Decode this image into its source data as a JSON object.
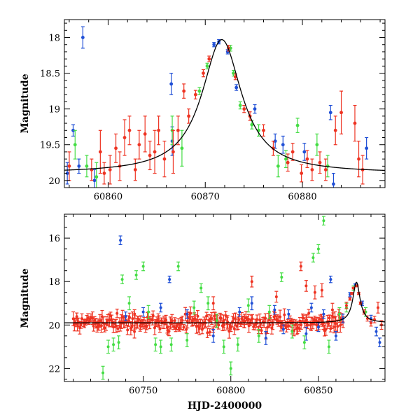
{
  "colors": {
    "blue": "#1f4fd6",
    "green": "#44dd44",
    "red": "#ee3322",
    "model": "#000000"
  },
  "chart_data": [
    {
      "type": "scatter",
      "panel": "top",
      "xlabel": "",
      "ylabel": "Magnitude",
      "xlim": [
        60855.5,
        60888.5
      ],
      "ylim": [
        20.1,
        17.75
      ],
      "y_inverted": true,
      "x_ticks": [
        60860,
        60870,
        60880
      ],
      "y_ticks": [
        18,
        18.5,
        19,
        19.5,
        20
      ],
      "y_tick_labels": [
        "18",
        "18.5",
        "19",
        "19.5",
        "20"
      ],
      "model_curve": {
        "type": "lorentzian",
        "peak_x": 60871.7,
        "peak_mag": 18.03,
        "baseline_mag": 19.9,
        "width": 2.5
      },
      "series": [
        {
          "color": "blue",
          "points": [
            {
              "x": 60855.8,
              "y": 19.9,
              "err": 0.15
            },
            {
              "x": 60856.4,
              "y": 19.3,
              "err": 0.08
            },
            {
              "x": 60857.0,
              "y": 19.8,
              "err": 0.1
            },
            {
              "x": 60857.4,
              "y": 18.0,
              "err": 0.15
            },
            {
              "x": 60858.6,
              "y": 20.0,
              "err": 0.15
            },
            {
              "x": 60866.5,
              "y": 18.65,
              "err": 0.15
            },
            {
              "x": 60866.6,
              "y": 19.45,
              "err": 0.2
            },
            {
              "x": 60870.9,
              "y": 18.1,
              "err": 0.03
            },
            {
              "x": 60871.4,
              "y": 18.06,
              "err": 0.03
            },
            {
              "x": 60872.3,
              "y": 18.2,
              "err": 0.03
            },
            {
              "x": 60873.2,
              "y": 18.7,
              "err": 0.04
            },
            {
              "x": 60875.1,
              "y": 19.0,
              "err": 0.06
            },
            {
              "x": 60877.2,
              "y": 19.45,
              "err": 0.1
            },
            {
              "x": 60878.0,
              "y": 19.5,
              "err": 0.12
            },
            {
              "x": 60880.2,
              "y": 19.6,
              "err": 0.12
            },
            {
              "x": 60882.9,
              "y": 19.05,
              "err": 0.1
            },
            {
              "x": 60883.2,
              "y": 20.05,
              "err": 0.15
            },
            {
              "x": 60886.6,
              "y": 19.55,
              "err": 0.15
            }
          ]
        },
        {
          "color": "green",
          "points": [
            {
              "x": 60856.6,
              "y": 19.5,
              "err": 0.2
            },
            {
              "x": 60857.8,
              "y": 19.8,
              "err": 0.15
            },
            {
              "x": 60858.8,
              "y": 19.95,
              "err": 0.2
            },
            {
              "x": 60866.6,
              "y": 19.3,
              "err": 0.2
            },
            {
              "x": 60867.6,
              "y": 19.55,
              "err": 0.25
            },
            {
              "x": 60869.4,
              "y": 18.75,
              "err": 0.05
            },
            {
              "x": 60870.2,
              "y": 18.4,
              "err": 0.04
            },
            {
              "x": 60872.6,
              "y": 18.15,
              "err": 0.04
            },
            {
              "x": 60872.9,
              "y": 18.5,
              "err": 0.04
            },
            {
              "x": 60873.6,
              "y": 18.95,
              "err": 0.05
            },
            {
              "x": 60874.8,
              "y": 19.22,
              "err": 0.06
            },
            {
              "x": 60875.5,
              "y": 19.3,
              "err": 0.08
            },
            {
              "x": 60877.5,
              "y": 19.8,
              "err": 0.15
            },
            {
              "x": 60878.3,
              "y": 19.7,
              "err": 0.12
            },
            {
              "x": 60879.5,
              "y": 19.23,
              "err": 0.1
            },
            {
              "x": 60881.5,
              "y": 19.5,
              "err": 0.15
            },
            {
              "x": 60882.6,
              "y": 19.8,
              "err": 0.15
            }
          ]
        },
        {
          "color": "red",
          "points": [
            {
              "x": 60856.0,
              "y": 19.8,
              "err": 0.2
            },
            {
              "x": 60858.3,
              "y": 19.85,
              "err": 0.15
            },
            {
              "x": 60859.2,
              "y": 19.6,
              "err": 0.3
            },
            {
              "x": 60859.6,
              "y": 19.9,
              "err": 0.15
            },
            {
              "x": 60860.2,
              "y": 19.85,
              "err": 0.2
            },
            {
              "x": 60860.8,
              "y": 19.55,
              "err": 0.2
            },
            {
              "x": 60861.2,
              "y": 19.8,
              "err": 0.2
            },
            {
              "x": 60861.7,
              "y": 19.4,
              "err": 0.25
            },
            {
              "x": 60862.2,
              "y": 19.3,
              "err": 0.2
            },
            {
              "x": 60862.8,
              "y": 19.85,
              "err": 0.15
            },
            {
              "x": 60863.2,
              "y": 19.5,
              "err": 0.2
            },
            {
              "x": 60863.8,
              "y": 19.35,
              "err": 0.25
            },
            {
              "x": 60864.3,
              "y": 19.65,
              "err": 0.2
            },
            {
              "x": 60864.8,
              "y": 19.6,
              "err": 0.3
            },
            {
              "x": 60865.2,
              "y": 19.3,
              "err": 0.2
            },
            {
              "x": 60865.8,
              "y": 19.7,
              "err": 0.25
            },
            {
              "x": 60866.7,
              "y": 19.6,
              "err": 0.3
            },
            {
              "x": 60867.2,
              "y": 19.3,
              "err": 0.2
            },
            {
              "x": 60867.8,
              "y": 18.75,
              "err": 0.1
            },
            {
              "x": 60868.3,
              "y": 19.1,
              "err": 0.1
            },
            {
              "x": 60869.0,
              "y": 18.8,
              "err": 0.06
            },
            {
              "x": 60869.8,
              "y": 18.5,
              "err": 0.05
            },
            {
              "x": 60870.4,
              "y": 18.3,
              "err": 0.04
            },
            {
              "x": 60872.4,
              "y": 18.15,
              "err": 0.04
            },
            {
              "x": 60873.1,
              "y": 18.55,
              "err": 0.04
            },
            {
              "x": 60874.0,
              "y": 19.0,
              "err": 0.05
            },
            {
              "x": 60874.6,
              "y": 19.1,
              "err": 0.06
            },
            {
              "x": 60876.0,
              "y": 19.3,
              "err": 0.08
            },
            {
              "x": 60877.0,
              "y": 19.55,
              "err": 0.1
            },
            {
              "x": 60878.5,
              "y": 19.75,
              "err": 0.12
            },
            {
              "x": 60879.0,
              "y": 19.6,
              "err": 0.12
            },
            {
              "x": 60879.9,
              "y": 19.9,
              "err": 0.12
            },
            {
              "x": 60880.5,
              "y": 19.7,
              "err": 0.12
            },
            {
              "x": 60881.0,
              "y": 19.85,
              "err": 0.15
            },
            {
              "x": 60881.8,
              "y": 19.75,
              "err": 0.15
            },
            {
              "x": 60882.4,
              "y": 19.85,
              "err": 0.15
            },
            {
              "x": 60883.4,
              "y": 19.3,
              "err": 0.2
            },
            {
              "x": 60884.0,
              "y": 19.05,
              "err": 0.3
            },
            {
              "x": 60885.4,
              "y": 19.2,
              "err": 0.25
            },
            {
              "x": 60885.8,
              "y": 19.7,
              "err": 0.25
            },
            {
              "x": 60886.2,
              "y": 19.85,
              "err": 0.2
            }
          ]
        }
      ]
    },
    {
      "type": "scatter",
      "panel": "bottom",
      "xlabel": "HJD-2400000",
      "ylabel": "Magnitude",
      "xlim": [
        60705,
        60888
      ],
      "ylim": [
        22.6,
        14.9
      ],
      "y_inverted": true,
      "x_ticks": [
        60750,
        60800,
        60850
      ],
      "y_ticks": [
        16,
        18,
        20,
        22
      ],
      "y_tick_labels": [
        "16",
        "18",
        "20",
        "22"
      ],
      "model_curve": {
        "type": "lorentzian",
        "peak_x": 60871.7,
        "peak_mag": 18.03,
        "baseline_mag": 19.9,
        "width": 2.5
      },
      "red_baseline": {
        "x_start": 60710,
        "x_end": 60864,
        "mag": 19.9,
        "scatter": 0.18
      },
      "series": [
        {
          "color": "blue",
          "points": [
            {
              "x": 60737,
              "y": 16.1,
              "err": 0.2
            },
            {
              "x": 60765,
              "y": 17.9,
              "err": 0.15
            },
            {
              "x": 60740,
              "y": 19.6,
              "err": 0.2
            },
            {
              "x": 60750,
              "y": 19.4,
              "err": 0.2
            },
            {
              "x": 60760,
              "y": 19.2,
              "err": 0.2
            },
            {
              "x": 60775,
              "y": 19.5,
              "err": 0.2
            },
            {
              "x": 60790,
              "y": 20.5,
              "err": 0.3
            },
            {
              "x": 60805,
              "y": 19.4,
              "err": 0.2
            },
            {
              "x": 60812,
              "y": 19.0,
              "err": 0.3
            },
            {
              "x": 60820,
              "y": 20.6,
              "err": 0.3
            },
            {
              "x": 60825,
              "y": 19.3,
              "err": 0.2
            },
            {
              "x": 60830,
              "y": 20.2,
              "err": 0.2
            },
            {
              "x": 60833,
              "y": 19.5,
              "err": 0.2
            },
            {
              "x": 60843,
              "y": 20.4,
              "err": 0.3
            },
            {
              "x": 60846,
              "y": 19.2,
              "err": 0.2
            },
            {
              "x": 60850,
              "y": 20.1,
              "err": 0.2
            },
            {
              "x": 60853,
              "y": 19.5,
              "err": 0.2
            },
            {
              "x": 60857,
              "y": 17.9,
              "err": 0.15
            },
            {
              "x": 60860,
              "y": 20.5,
              "err": 0.2
            },
            {
              "x": 60864,
              "y": 19.7,
              "err": 0.2
            },
            {
              "x": 60868,
              "y": 18.6,
              "err": 0.1
            },
            {
              "x": 60871,
              "y": 18.15,
              "err": 0.05
            },
            {
              "x": 60875,
              "y": 19.0,
              "err": 0.1
            },
            {
              "x": 60880,
              "y": 19.7,
              "err": 0.15
            },
            {
              "x": 60883,
              "y": 20.3,
              "err": 0.2
            },
            {
              "x": 60885,
              "y": 20.8,
              "err": 0.2
            }
          ]
        },
        {
          "color": "green",
          "points": [
            {
              "x": 60727,
              "y": 22.2,
              "err": 0.3
            },
            {
              "x": 60730,
              "y": 21.0,
              "err": 0.3
            },
            {
              "x": 60733,
              "y": 20.9,
              "err": 0.3
            },
            {
              "x": 60736,
              "y": 20.8,
              "err": 0.3
            },
            {
              "x": 60738,
              "y": 17.9,
              "err": 0.2
            },
            {
              "x": 60742,
              "y": 19.0,
              "err": 0.3
            },
            {
              "x": 60746,
              "y": 17.7,
              "err": 0.2
            },
            {
              "x": 60750,
              "y": 17.3,
              "err": 0.2
            },
            {
              "x": 60753,
              "y": 19.4,
              "err": 0.3
            },
            {
              "x": 60757,
              "y": 20.9,
              "err": 0.3
            },
            {
              "x": 60760,
              "y": 21.0,
              "err": 0.3
            },
            {
              "x": 60766,
              "y": 20.9,
              "err": 0.3
            },
            {
              "x": 60770,
              "y": 17.3,
              "err": 0.2
            },
            {
              "x": 60775,
              "y": 20.7,
              "err": 0.3
            },
            {
              "x": 60779,
              "y": 19.2,
              "err": 0.3
            },
            {
              "x": 60783,
              "y": 18.3,
              "err": 0.2
            },
            {
              "x": 60787,
              "y": 19.0,
              "err": 0.3
            },
            {
              "x": 60792,
              "y": 19.8,
              "err": 0.3
            },
            {
              "x": 60796,
              "y": 21.0,
              "err": 0.3
            },
            {
              "x": 60800,
              "y": 22.0,
              "err": 0.3
            },
            {
              "x": 60804,
              "y": 20.9,
              "err": 0.3
            },
            {
              "x": 60810,
              "y": 19.1,
              "err": 0.3
            },
            {
              "x": 60816,
              "y": 20.5,
              "err": 0.3
            },
            {
              "x": 60822,
              "y": 19.4,
              "err": 0.3
            },
            {
              "x": 60829,
              "y": 17.8,
              "err": 0.2
            },
            {
              "x": 60835,
              "y": 20.3,
              "err": 0.3
            },
            {
              "x": 60842,
              "y": 20.8,
              "err": 0.3
            },
            {
              "x": 60847,
              "y": 16.9,
              "err": 0.2
            },
            {
              "x": 60850,
              "y": 16.5,
              "err": 0.2
            },
            {
              "x": 60853,
              "y": 15.2,
              "err": 0.2
            },
            {
              "x": 60856,
              "y": 21.0,
              "err": 0.3
            },
            {
              "x": 60862,
              "y": 19.5,
              "err": 0.3
            },
            {
              "x": 60866,
              "y": 19.2,
              "err": 0.2
            },
            {
              "x": 60870,
              "y": 18.3,
              "err": 0.1
            },
            {
              "x": 60877,
              "y": 19.4,
              "err": 0.2
            }
          ]
        },
        {
          "color": "red",
          "points": [
            {
              "x": 60745,
              "y": 20.3,
              "err": 0.3
            },
            {
              "x": 60790,
              "y": 19.0,
              "err": 0.3
            },
            {
              "x": 60812,
              "y": 18.0,
              "err": 0.25
            },
            {
              "x": 60826,
              "y": 18.7,
              "err": 0.25
            },
            {
              "x": 60840,
              "y": 17.3,
              "err": 0.2
            },
            {
              "x": 60843,
              "y": 18.2,
              "err": 0.25
            },
            {
              "x": 60848,
              "y": 18.5,
              "err": 0.3
            },
            {
              "x": 60852,
              "y": 18.4,
              "err": 0.3
            },
            {
              "x": 60858,
              "y": 19.3,
              "err": 0.3
            },
            {
              "x": 60866,
              "y": 19.1,
              "err": 0.15
            },
            {
              "x": 60868,
              "y": 18.8,
              "err": 0.06
            },
            {
              "x": 60869,
              "y": 18.55,
              "err": 0.05
            },
            {
              "x": 60870,
              "y": 18.3,
              "err": 0.04
            },
            {
              "x": 60872,
              "y": 18.2,
              "err": 0.04
            },
            {
              "x": 60873,
              "y": 18.55,
              "err": 0.05
            },
            {
              "x": 60874,
              "y": 19.0,
              "err": 0.06
            },
            {
              "x": 60876,
              "y": 19.4,
              "err": 0.1
            },
            {
              "x": 60878,
              "y": 19.7,
              "err": 0.12
            },
            {
              "x": 60880,
              "y": 19.9,
              "err": 0.15
            },
            {
              "x": 60882,
              "y": 19.75,
              "err": 0.15
            },
            {
              "x": 60884,
              "y": 19.2,
              "err": 0.25
            },
            {
              "x": 60886,
              "y": 20.0,
              "err": 0.2
            }
          ]
        }
      ]
    }
  ]
}
